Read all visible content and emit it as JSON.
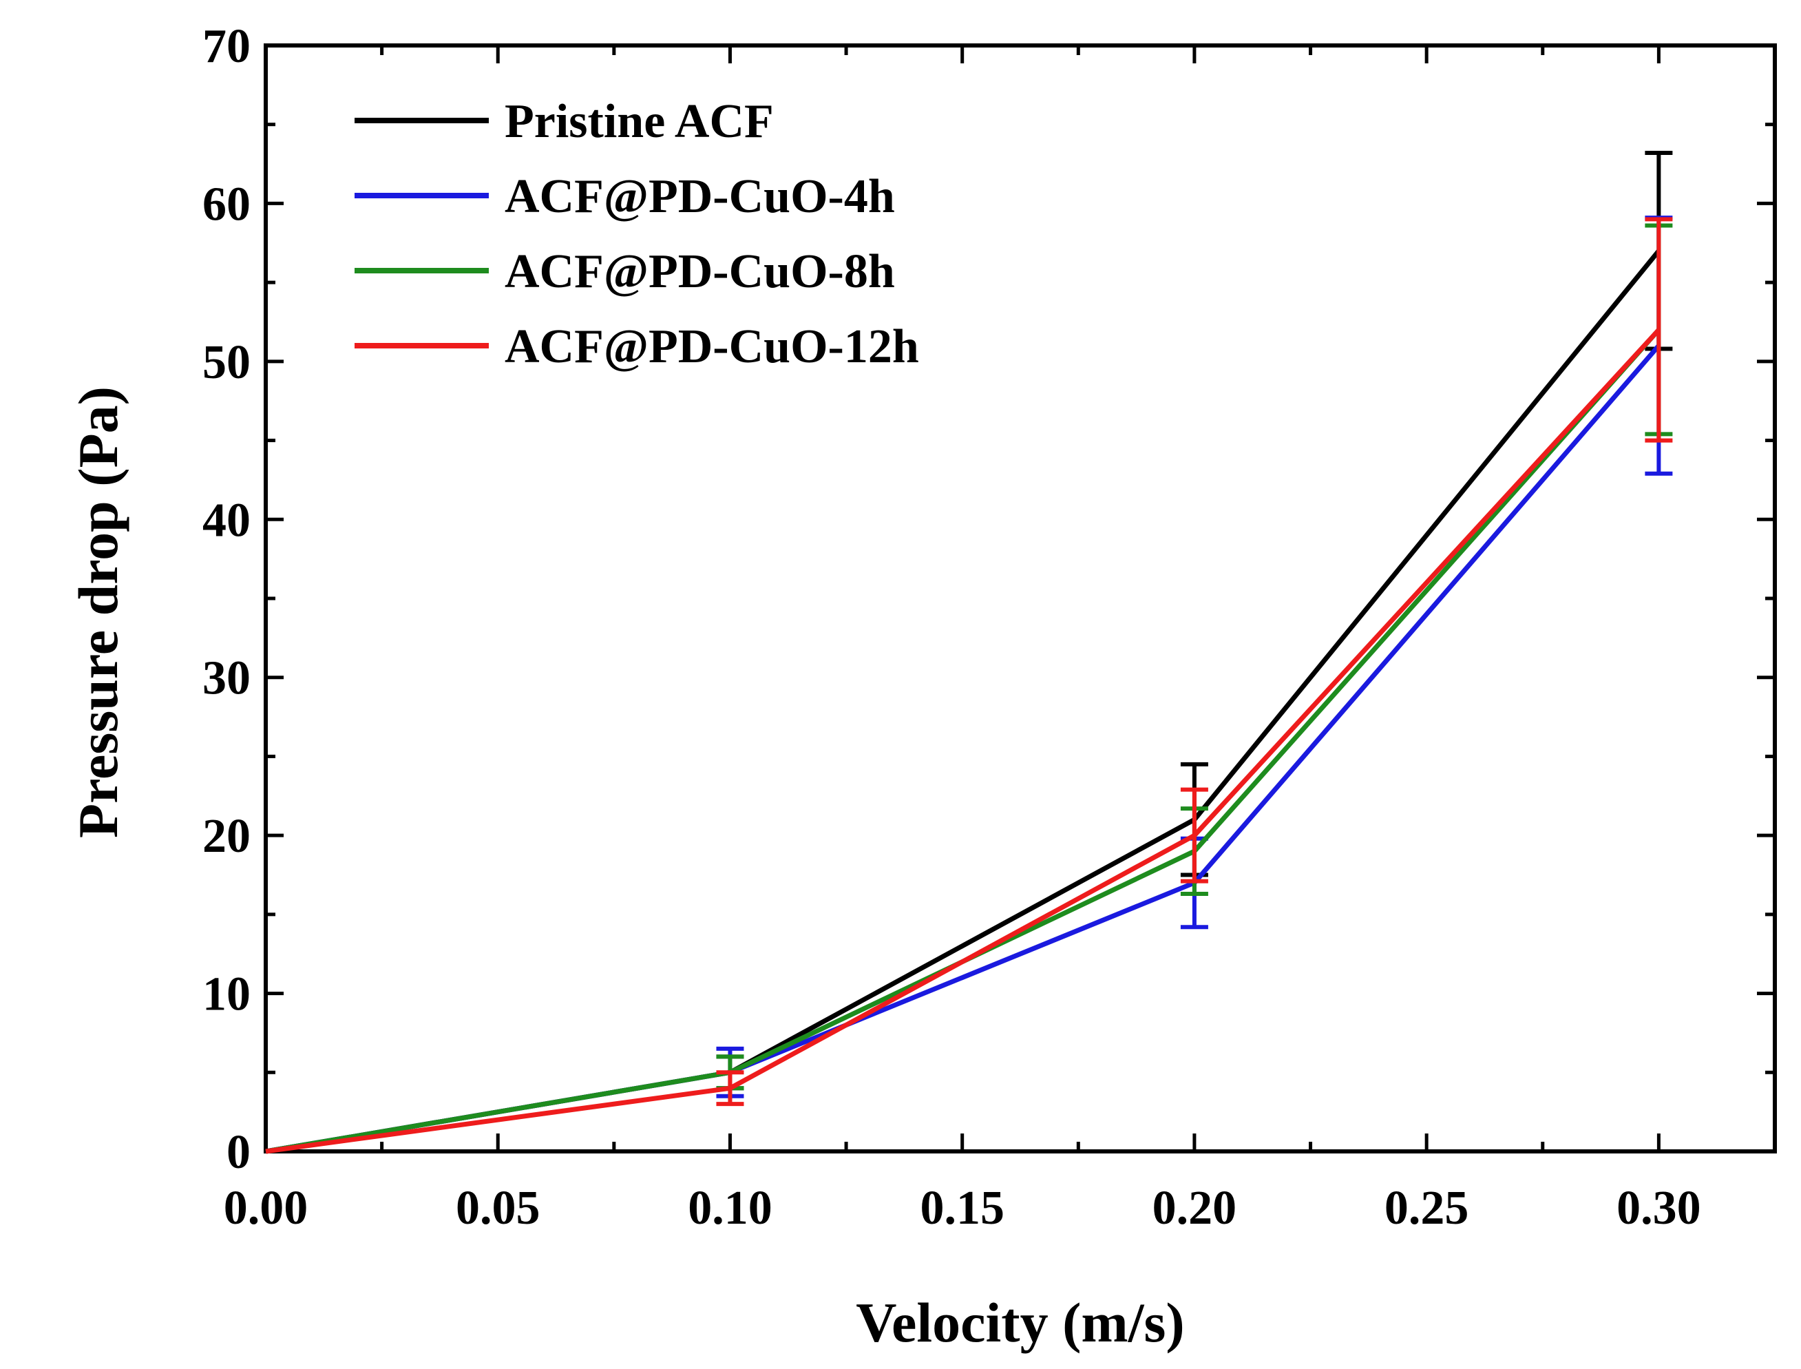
{
  "chart_data": {
    "type": "line",
    "title": "",
    "xlabel": "Velocity (m/s)",
    "ylabel": "Pressure drop (Pa)",
    "xlim": [
      0,
      0.325
    ],
    "ylim": [
      0,
      70
    ],
    "x_ticks": [
      0.0,
      0.05,
      0.1,
      0.15,
      0.2,
      0.25,
      0.3
    ],
    "x_tick_labels": [
      "0.00",
      "0.05",
      "0.10",
      "0.15",
      "0.20",
      "0.25",
      "0.30"
    ],
    "y_ticks": [
      0,
      10,
      20,
      30,
      40,
      50,
      60,
      70
    ],
    "y_tick_labels": [
      "0",
      "10",
      "20",
      "30",
      "40",
      "50",
      "60",
      "70"
    ],
    "x_minor_step": 0.025,
    "y_minor_step": 5,
    "grid": false,
    "legend_position": "top-left",
    "x": [
      0,
      0.1,
      0.2,
      0.3
    ],
    "series": [
      {
        "name": "Pristine ACF",
        "color": "#000000",
        "values": [
          0,
          5.0,
          21.0,
          57.0
        ],
        "err_low": [
          null,
          4.0,
          17.5,
          50.8
        ],
        "err_high": [
          null,
          6.0,
          24.5,
          63.2
        ]
      },
      {
        "name": "ACF@PD-CuO-4h",
        "color": "#1a1adf",
        "values": [
          0,
          5.0,
          17.0,
          51.0
        ],
        "err_low": [
          null,
          3.5,
          14.2,
          42.9
        ],
        "err_high": [
          null,
          6.5,
          19.8,
          59.1
        ]
      },
      {
        "name": "ACF@PD-CuO-8h",
        "color": "#1e8c1e",
        "values": [
          0,
          5.0,
          19.0,
          52.0
        ],
        "err_low": [
          null,
          4.0,
          16.3,
          45.4
        ],
        "err_high": [
          null,
          6.0,
          21.7,
          58.6
        ]
      },
      {
        "name": "ACF@PD-CuO-12h",
        "color": "#ee1c1c",
        "values": [
          0,
          4.0,
          20.0,
          52.0
        ],
        "err_low": [
          null,
          3.0,
          17.1,
          45.0
        ],
        "err_high": [
          null,
          5.0,
          22.9,
          59.0
        ]
      }
    ]
  }
}
